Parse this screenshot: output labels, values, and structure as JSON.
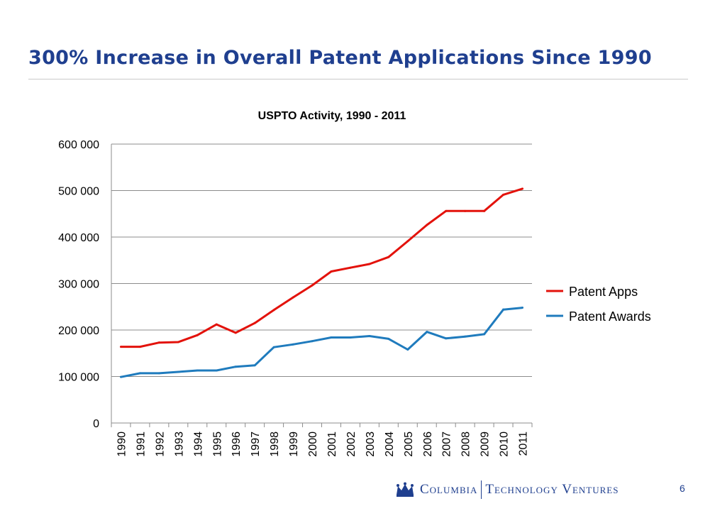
{
  "slide": {
    "title": "300% Increase in Overall Patent Applications Since 1990",
    "page_number": "6"
  },
  "footer": {
    "logo_part1": "Columbia",
    "logo_part2": "Technology Ventures"
  },
  "colors": {
    "title": "#1f3f8f",
    "patent_apps": "#e3120b",
    "patent_awards": "#1f7bbd",
    "grid": "#8c8c8c"
  },
  "chart_data": {
    "type": "line",
    "title": "USPTO Activity, 1990 - 2011",
    "xlabel": "",
    "ylabel": "",
    "categories": [
      "1990",
      "1991",
      "1992",
      "1993",
      "1994",
      "1995",
      "1996",
      "1997",
      "1998",
      "1999",
      "2000",
      "2001",
      "2002",
      "2003",
      "2004",
      "2005",
      "2006",
      "2007",
      "2008",
      "2009",
      "2010",
      "2011"
    ],
    "ylim": [
      0,
      600000
    ],
    "yticks": [
      0,
      100000,
      200000,
      300000,
      400000,
      500000,
      600000
    ],
    "ytick_labels": [
      "0",
      "100 000",
      "200 000",
      "300 000",
      "400 000",
      "500 000",
      "600 000"
    ],
    "grid": true,
    "legend_position": "right",
    "series": [
      {
        "name": "Patent Apps",
        "color": "#e3120b",
        "values": [
          164000,
          164000,
          173000,
          174000,
          189000,
          212000,
          194000,
          215000,
          243000,
          270000,
          296000,
          326000,
          334000,
          342000,
          357000,
          391000,
          426000,
          456000,
          456000,
          456000,
          491000,
          504000
        ]
      },
      {
        "name": "Patent Awards",
        "color": "#1f7bbd",
        "values": [
          99000,
          107000,
          107000,
          110000,
          113000,
          113000,
          121000,
          124000,
          163000,
          169000,
          176000,
          184000,
          184000,
          187000,
          181000,
          158000,
          196000,
          182000,
          186000,
          191000,
          244000,
          248000
        ]
      }
    ]
  }
}
